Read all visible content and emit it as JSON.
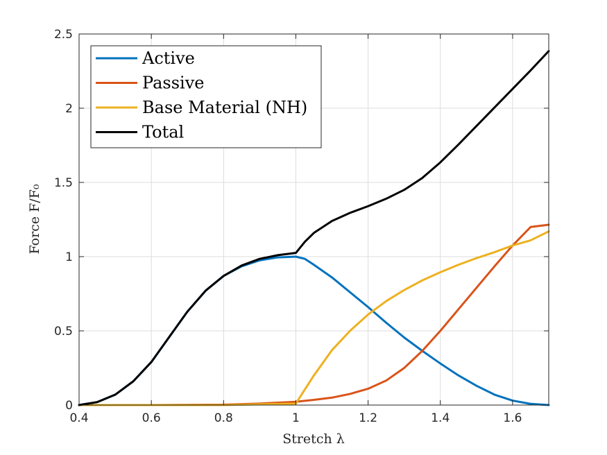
{
  "chart_data": {
    "type": "line",
    "xlabel": "Stretch λ",
    "ylabel": "Force F/F₀",
    "xlim": [
      0.4,
      1.7
    ],
    "ylim": [
      0,
      2.5
    ],
    "xticks": [
      0.4,
      0.6,
      0.8,
      1.0,
      1.2,
      1.4,
      1.6
    ],
    "xtick_labels": [
      "0.4",
      "0.6",
      "0.8",
      "1",
      "1.2",
      "1.4",
      "1.6"
    ],
    "yticks": [
      0,
      0.5,
      1.0,
      1.5,
      2.0,
      2.5
    ],
    "ytick_labels": [
      "0",
      "0.5",
      "1",
      "1.5",
      "2",
      "2.5"
    ],
    "grid": true,
    "legend_position": "top-left",
    "series": [
      {
        "name": "Active",
        "color": "#0072BD",
        "x": [
          0.4,
          0.45,
          0.5,
          0.55,
          0.6,
          0.65,
          0.7,
          0.75,
          0.8,
          0.85,
          0.9,
          0.95,
          1.0,
          1.025,
          1.05,
          1.1,
          1.15,
          1.2,
          1.25,
          1.3,
          1.35,
          1.4,
          1.45,
          1.5,
          1.55,
          1.6,
          1.65,
          1.7
        ],
        "y": [
          0.0,
          0.02,
          0.07,
          0.16,
          0.29,
          0.46,
          0.63,
          0.77,
          0.87,
          0.935,
          0.975,
          0.995,
          1.0,
          0.985,
          0.945,
          0.86,
          0.76,
          0.66,
          0.555,
          0.455,
          0.365,
          0.28,
          0.2,
          0.13,
          0.07,
          0.03,
          0.008,
          0.0
        ]
      },
      {
        "name": "Passive",
        "color": "#D95319",
        "x": [
          0.4,
          0.6,
          0.8,
          0.9,
          1.0,
          1.05,
          1.1,
          1.15,
          1.2,
          1.25,
          1.3,
          1.35,
          1.4,
          1.45,
          1.5,
          1.55,
          1.6,
          1.65,
          1.7
        ],
        "y": [
          0.0,
          0.0,
          0.003,
          0.01,
          0.022,
          0.035,
          0.05,
          0.075,
          0.11,
          0.165,
          0.25,
          0.365,
          0.5,
          0.645,
          0.79,
          0.935,
          1.075,
          1.2,
          1.215
        ]
      },
      {
        "name": "Base Material (NH)",
        "color": "#EDB120",
        "x": [
          0.4,
          0.6,
          0.8,
          1.0,
          1.05,
          1.1,
          1.15,
          1.2,
          1.25,
          1.3,
          1.35,
          1.4,
          1.45,
          1.5,
          1.55,
          1.6,
          1.65,
          1.7
        ],
        "y": [
          0.0,
          0.0,
          0.0,
          0.01,
          0.2,
          0.37,
          0.5,
          0.61,
          0.7,
          0.775,
          0.84,
          0.895,
          0.945,
          0.99,
          1.03,
          1.075,
          1.11,
          1.17
        ]
      },
      {
        "name": "Total",
        "color": "#000000",
        "x": [
          0.4,
          0.45,
          0.5,
          0.55,
          0.6,
          0.65,
          0.7,
          0.75,
          0.8,
          0.85,
          0.9,
          0.95,
          1.0,
          1.025,
          1.05,
          1.1,
          1.15,
          1.2,
          1.25,
          1.3,
          1.35,
          1.4,
          1.45,
          1.5,
          1.55,
          1.6,
          1.65,
          1.7
        ],
        "y": [
          0.0,
          0.02,
          0.07,
          0.16,
          0.29,
          0.46,
          0.63,
          0.77,
          0.87,
          0.94,
          0.985,
          1.01,
          1.025,
          1.1,
          1.16,
          1.24,
          1.295,
          1.34,
          1.39,
          1.45,
          1.53,
          1.635,
          1.755,
          1.88,
          2.005,
          2.13,
          2.255,
          2.385
        ]
      }
    ]
  }
}
